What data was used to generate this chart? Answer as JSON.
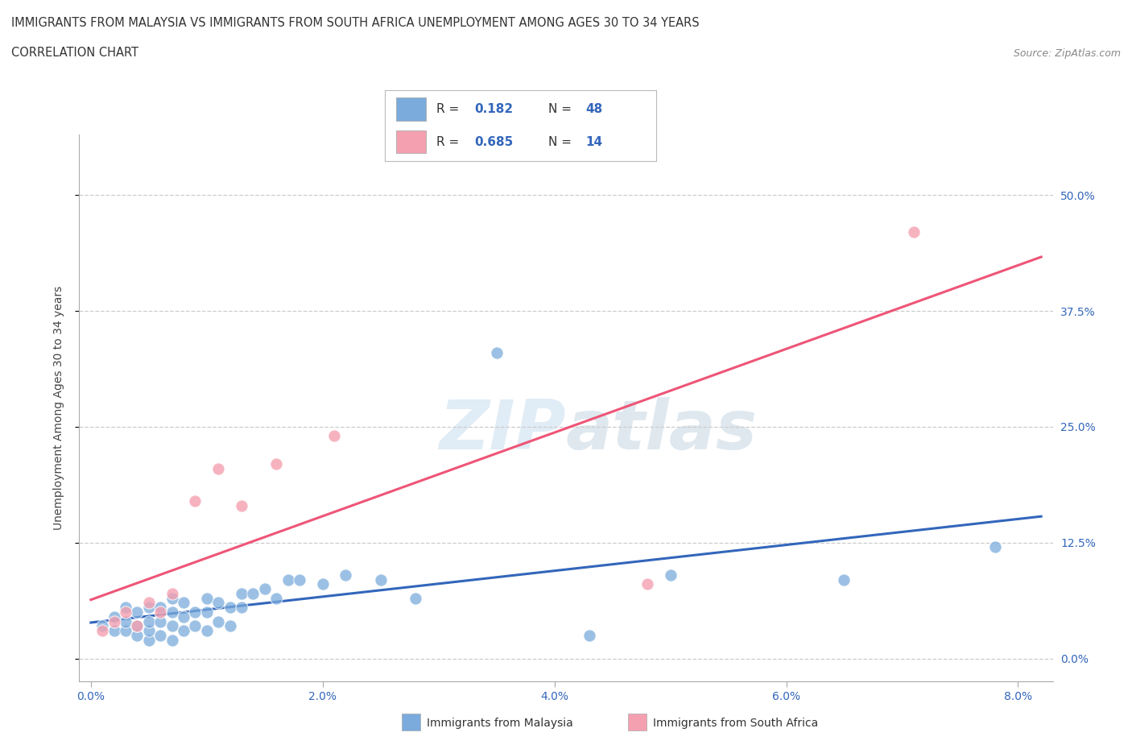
{
  "title_line1": "IMMIGRANTS FROM MALAYSIA VS IMMIGRANTS FROM SOUTH AFRICA UNEMPLOYMENT AMONG AGES 30 TO 34 YEARS",
  "title_line2": "CORRELATION CHART",
  "source_text": "Source: ZipAtlas.com",
  "ylabel": "Unemployment Among Ages 30 to 34 years",
  "xlim": [
    -0.001,
    0.083
  ],
  "ylim": [
    -0.025,
    0.565
  ],
  "xticks": [
    0.0,
    0.02,
    0.04,
    0.06,
    0.08
  ],
  "xtick_labels": [
    "0.0%",
    "2.0%",
    "4.0%",
    "6.0%",
    "8.0%"
  ],
  "ytick_labels": [
    "0.0%",
    "12.5%",
    "25.0%",
    "37.5%",
    "50.0%"
  ],
  "ytick_values": [
    0.0,
    0.125,
    0.25,
    0.375,
    0.5
  ],
  "malaysia_color": "#7AABDC",
  "south_africa_color": "#F4A0B0",
  "malaysia_line_color": "#3366BB",
  "south_africa_line_color": "#EE5577",
  "malaysia_R": 0.182,
  "malaysia_N": 48,
  "south_africa_R": 0.685,
  "south_africa_N": 14,
  "malaysia_x": [
    0.001,
    0.002,
    0.002,
    0.003,
    0.003,
    0.003,
    0.004,
    0.004,
    0.004,
    0.005,
    0.005,
    0.005,
    0.005,
    0.006,
    0.006,
    0.006,
    0.007,
    0.007,
    0.007,
    0.007,
    0.008,
    0.008,
    0.008,
    0.009,
    0.009,
    0.01,
    0.01,
    0.01,
    0.011,
    0.011,
    0.012,
    0.012,
    0.013,
    0.013,
    0.014,
    0.015,
    0.016,
    0.017,
    0.018,
    0.02,
    0.022,
    0.025,
    0.028,
    0.035,
    0.043,
    0.05,
    0.065,
    0.078
  ],
  "malaysia_y": [
    0.035,
    0.03,
    0.045,
    0.03,
    0.04,
    0.055,
    0.025,
    0.035,
    0.05,
    0.02,
    0.03,
    0.04,
    0.055,
    0.025,
    0.04,
    0.055,
    0.02,
    0.035,
    0.05,
    0.065,
    0.03,
    0.045,
    0.06,
    0.035,
    0.05,
    0.03,
    0.05,
    0.065,
    0.04,
    0.06,
    0.035,
    0.055,
    0.055,
    0.07,
    0.07,
    0.075,
    0.065,
    0.085,
    0.085,
    0.08,
    0.09,
    0.085,
    0.065,
    0.33,
    0.025,
    0.09,
    0.085,
    0.12
  ],
  "south_africa_x": [
    0.001,
    0.002,
    0.003,
    0.004,
    0.005,
    0.006,
    0.007,
    0.009,
    0.011,
    0.013,
    0.016,
    0.021,
    0.048,
    0.071
  ],
  "south_africa_y": [
    0.03,
    0.04,
    0.05,
    0.035,
    0.06,
    0.05,
    0.07,
    0.17,
    0.205,
    0.165,
    0.21,
    0.24,
    0.08,
    0.46
  ],
  "background_color": "#FFFFFF",
  "grid_color": "#CCCCCC"
}
